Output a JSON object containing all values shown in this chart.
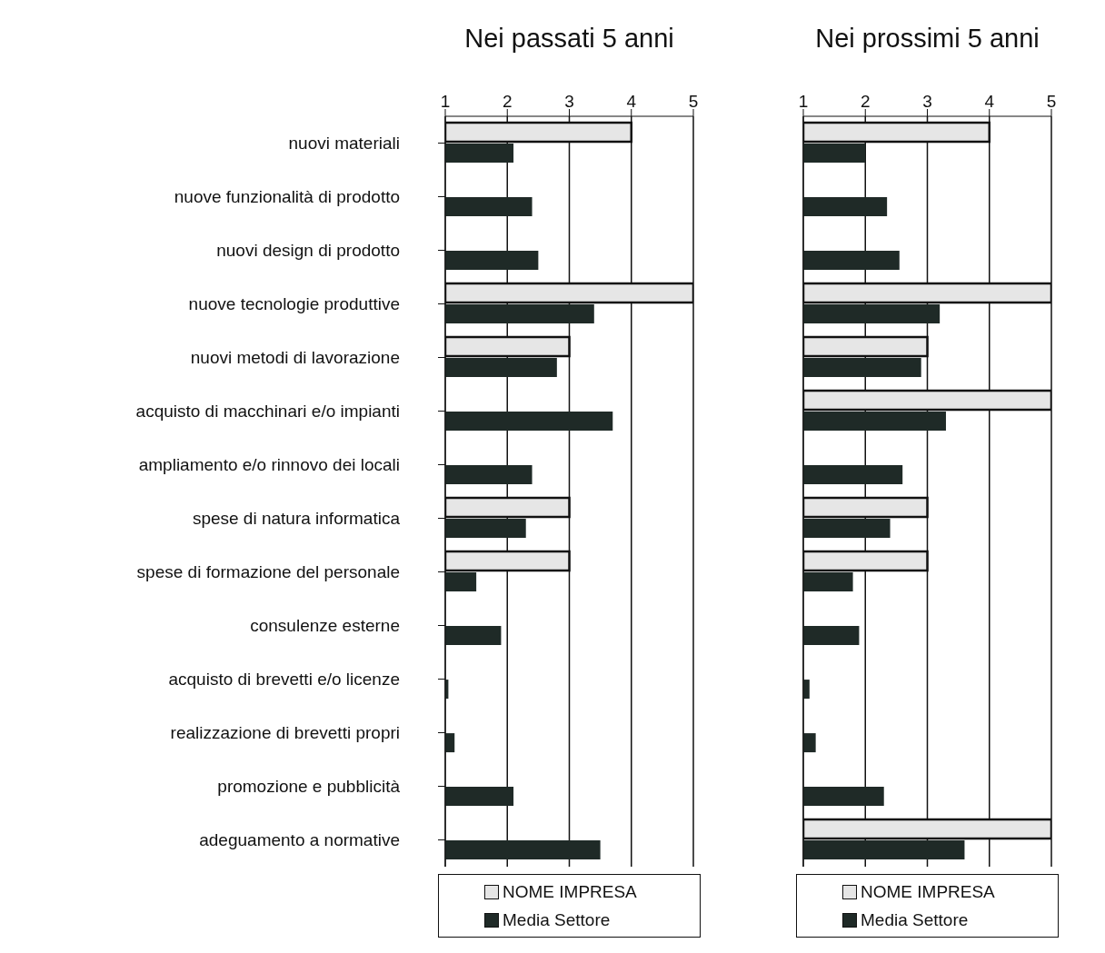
{
  "chart_data": [
    {
      "type": "bar",
      "orientation": "horizontal",
      "title": "Nei passati 5 anni",
      "categories": [
        "nuovi materiali",
        "nuove funzionalità di prodotto",
        "nuovi design di prodotto",
        "nuove tecnologie produttive",
        "nuovi metodi di lavorazione",
        "acquisto di macchinari e/o impianti",
        "ampliamento e/o rinnovo dei locali",
        "spese di natura informatica",
        "spese di formazione del personale",
        "consulenze esterne",
        "acquisto di brevetti e/o licenze",
        "realizzazione di brevetti propri",
        "promozione e pubblicità",
        "adeguamento a normative"
      ],
      "series": [
        {
          "name": "NOME IMPRESA",
          "color": "#e6e6e6",
          "values": [
            4,
            null,
            null,
            5,
            3,
            null,
            null,
            3,
            3,
            null,
            null,
            null,
            null,
            null
          ]
        },
        {
          "name": "Media Settore",
          "color": "#1f2a27",
          "values": [
            2.1,
            2.4,
            2.5,
            3.4,
            2.8,
            3.7,
            2.4,
            2.3,
            1.5,
            1.9,
            1.05,
            1.15,
            2.1,
            3.5
          ]
        }
      ],
      "xlim": [
        1,
        5
      ],
      "xticks": [
        1,
        2,
        3,
        4,
        5
      ],
      "grid": "x",
      "legend": "bottom"
    },
    {
      "type": "bar",
      "orientation": "horizontal",
      "title": "Nei prossimi 5 anni",
      "categories": [
        null,
        null,
        null,
        null,
        null,
        null,
        null,
        null,
        null,
        null,
        null,
        null,
        null,
        null
      ],
      "series": [
        {
          "name": "NOME IMPRESA",
          "color": "#e6e6e6",
          "values": [
            4,
            null,
            null,
            5,
            3,
            5,
            null,
            3,
            3,
            null,
            null,
            null,
            null,
            5
          ]
        },
        {
          "name": "Media Settore",
          "color": "#1f2a27",
          "values": [
            2.0,
            2.35,
            2.55,
            3.2,
            2.9,
            3.3,
            2.6,
            2.4,
            1.8,
            1.9,
            1.1,
            1.2,
            2.3,
            3.6
          ]
        }
      ],
      "xlim": [
        1,
        5
      ],
      "xticks": [
        1,
        2,
        3,
        4,
        5
      ],
      "grid": "x",
      "legend": "bottom",
      "tick_labels": "x"
    }
  ]
}
